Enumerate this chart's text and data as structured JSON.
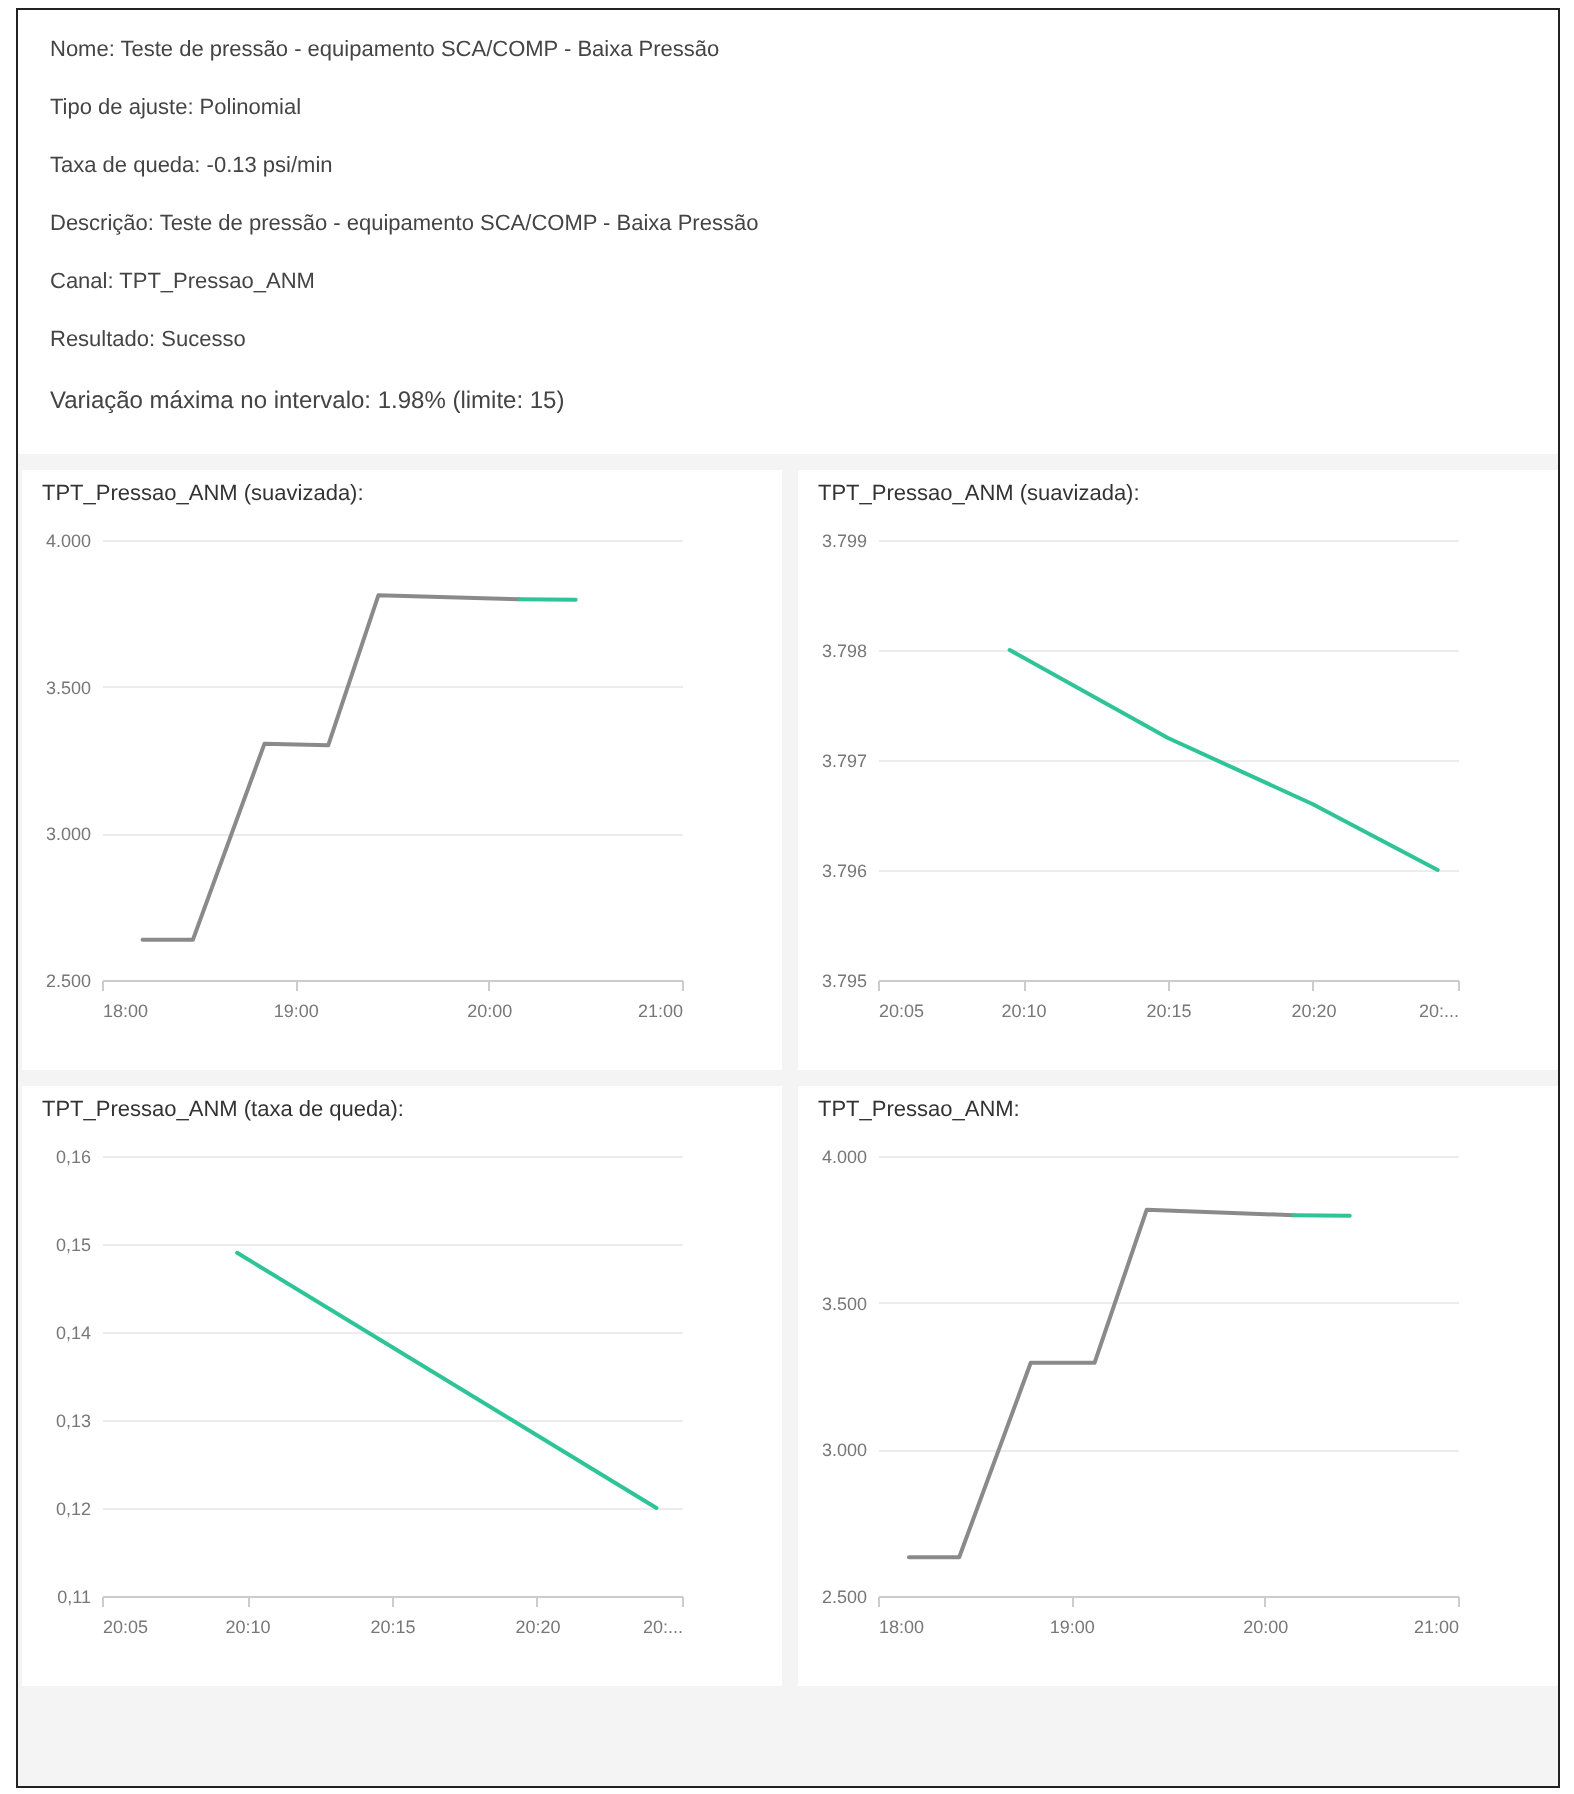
{
  "chart_data": [
    {
      "type": "other",
      "annotations": [
        "Nome: Teste de pressão - equipamento SCA/COMP - Baixa Pressão",
        "Tipo de ajuste: Polinomial",
        "Taxa de queda: -0.13 psi/min",
        "Descrição: Teste de pressão - equipamento SCA/COMP - Baixa Pressão",
        "Canal: TPT_Pressao_ANM",
        "Resultado: Sucesso",
        "Variação máxima no intervalo: 1.98% (limite: 15)"
      ]
    },
    {
      "type": "line",
      "title": "TPT_Pressao_ANM (suavizada):",
      "grid": "y",
      "xlim": [
        18,
        21
      ],
      "xticks": [
        {
          "value": 18,
          "label": "18:00"
        },
        {
          "value": 19,
          "label": "19:00"
        },
        {
          "value": 20,
          "label": "20:00"
        },
        {
          "value": 21,
          "label": "21:00"
        }
      ],
      "ylim": [
        2500,
        4000
      ],
      "yticks": [
        {
          "value": 2500,
          "label": "2.500"
        },
        {
          "value": 3000,
          "label": "3.000"
        },
        {
          "value": 3500,
          "label": "3.500"
        },
        {
          "value": 4000,
          "label": "4.000"
        }
      ],
      "series": [
        {
          "color": "#8a8a8a",
          "x": [
            18.21,
            18.47,
            18.84,
            19.17,
            19.43,
            20.16
          ],
          "values": [
            2637,
            2637,
            3305,
            3300,
            3812,
            3798
          ]
        },
        {
          "color": "#2ec497",
          "x": [
            20.16,
            20.45
          ],
          "values": [
            3798,
            3796
          ]
        }
      ]
    },
    {
      "type": "line",
      "title": "TPT_Pressao_ANM (suavizada):",
      "grid": "y",
      "xlim": [
        20.0833,
        20.4167
      ],
      "xticks": [
        {
          "value": 20.0833,
          "label": "20:05"
        },
        {
          "value": 20.1667,
          "label": "20:10"
        },
        {
          "value": 20.25,
          "label": "20:15"
        },
        {
          "value": 20.3333,
          "label": "20:20"
        },
        {
          "value": 20.4167,
          "label": "20:..."
        }
      ],
      "ylim": [
        3795,
        3799
      ],
      "yticks": [
        {
          "value": 3795,
          "label": "3.795"
        },
        {
          "value": 3796,
          "label": "3.796"
        },
        {
          "value": 3797,
          "label": "3.797"
        },
        {
          "value": 3798,
          "label": "3.798"
        },
        {
          "value": 3799,
          "label": "3.799"
        }
      ],
      "series": [
        {
          "color": "#2ec497",
          "x": [
            20.159,
            20.25,
            20.333,
            20.405
          ],
          "values": [
            3798.0,
            3797.2,
            3796.6,
            3796.0
          ]
        }
      ]
    },
    {
      "type": "line",
      "title": "TPT_Pressao_ANM (taxa de queda):",
      "grid": "y",
      "xlim": [
        20.0833,
        20.4167
      ],
      "xticks": [
        {
          "value": 20.0833,
          "label": "20:05"
        },
        {
          "value": 20.1667,
          "label": "20:10"
        },
        {
          "value": 20.25,
          "label": "20:15"
        },
        {
          "value": 20.3333,
          "label": "20:20"
        },
        {
          "value": 20.4167,
          "label": "20:..."
        }
      ],
      "ylim": [
        0.11,
        0.16
      ],
      "yticks": [
        {
          "value": 0.11,
          "label": "0,11"
        },
        {
          "value": 0.12,
          "label": "0,12"
        },
        {
          "value": 0.13,
          "label": "0,13"
        },
        {
          "value": 0.14,
          "label": "0,14"
        },
        {
          "value": 0.15,
          "label": "0,15"
        },
        {
          "value": 0.16,
          "label": "0,16"
        }
      ],
      "series": [
        {
          "color": "#2ec497",
          "x": [
            20.161,
            20.402
          ],
          "values": [
            0.149,
            0.12
          ]
        }
      ]
    },
    {
      "type": "line",
      "title": "TPT_Pressao_ANM:",
      "grid": "y",
      "xlim": [
        18,
        21
      ],
      "xticks": [
        {
          "value": 18,
          "label": "18:00"
        },
        {
          "value": 19,
          "label": "19:00"
        },
        {
          "value": 20,
          "label": "20:00"
        },
        {
          "value": 21,
          "label": "21:00"
        }
      ],
      "ylim": [
        2500,
        4000
      ],
      "yticks": [
        {
          "value": 2500,
          "label": "2.500"
        },
        {
          "value": 3000,
          "label": "3.000"
        },
        {
          "value": 3500,
          "label": "3.500"
        },
        {
          "value": 4000,
          "label": "4.000"
        }
      ],
      "series": [
        {
          "color": "#8a8a8a",
          "x": [
            18.16,
            18.42,
            18.79,
            19.12,
            19.39,
            20.15
          ],
          "values": [
            2632,
            2632,
            3295,
            3295,
            3817,
            3798
          ]
        },
        {
          "color": "#2ec497",
          "x": [
            20.15,
            20.44
          ],
          "values": [
            3798,
            3796
          ]
        }
      ]
    }
  ]
}
